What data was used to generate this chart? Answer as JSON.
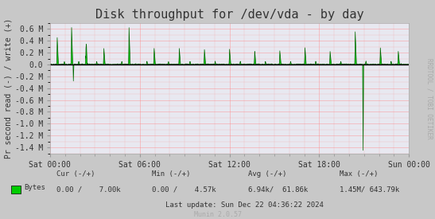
{
  "title": "Disk throughput for /dev/vda - by day",
  "ylabel": "Pr second read (-) / write (+)",
  "bg_color": "#c8c8c8",
  "plot_bg_color": "#e8e8f0",
  "grid_color": "#ff8080",
  "line_color": "#00cc00",
  "line_color_dark": "#006600",
  "yticks": [
    -1.4,
    -1.2,
    -1.0,
    -0.8,
    -0.6,
    -0.4,
    -0.2,
    0.0,
    0.2,
    0.4,
    0.6
  ],
  "ytick_labels": [
    "-1.4 M",
    "-1.2 M",
    "-1.0 M",
    "-0.8 M",
    "-0.6 M",
    "-0.4 M",
    "-0.2 M",
    "0.0",
    "0.2 M",
    "0.4 M",
    "0.6 M"
  ],
  "xtick_labels": [
    "Sat 00:00",
    "Sat 06:00",
    "Sat 12:00",
    "Sat 18:00",
    "Sun 00:00"
  ],
  "xlim": [
    0,
    1
  ],
  "ylim": [
    -1.5,
    0.7
  ],
  "rrdtool_text": "RRDTOOL / TOBI OETIKER",
  "legend_label": "Bytes",
  "legend_cur": "Cur (-/+)",
  "legend_min": "Min (-/+)",
  "legend_avg": "Avg (-/+)",
  "legend_max": "Max (-/+)",
  "legend_cur_val": "0.00 /    7.00k",
  "legend_min_val": "0.00 /    4.57k",
  "legend_avg_val": "6.94k/  61.86k",
  "legend_max_val": "1.45M/ 643.79k",
  "last_update": "Last update: Sun Dec 22 04:36:22 2024",
  "munin_text": "Munin 2.0.57"
}
